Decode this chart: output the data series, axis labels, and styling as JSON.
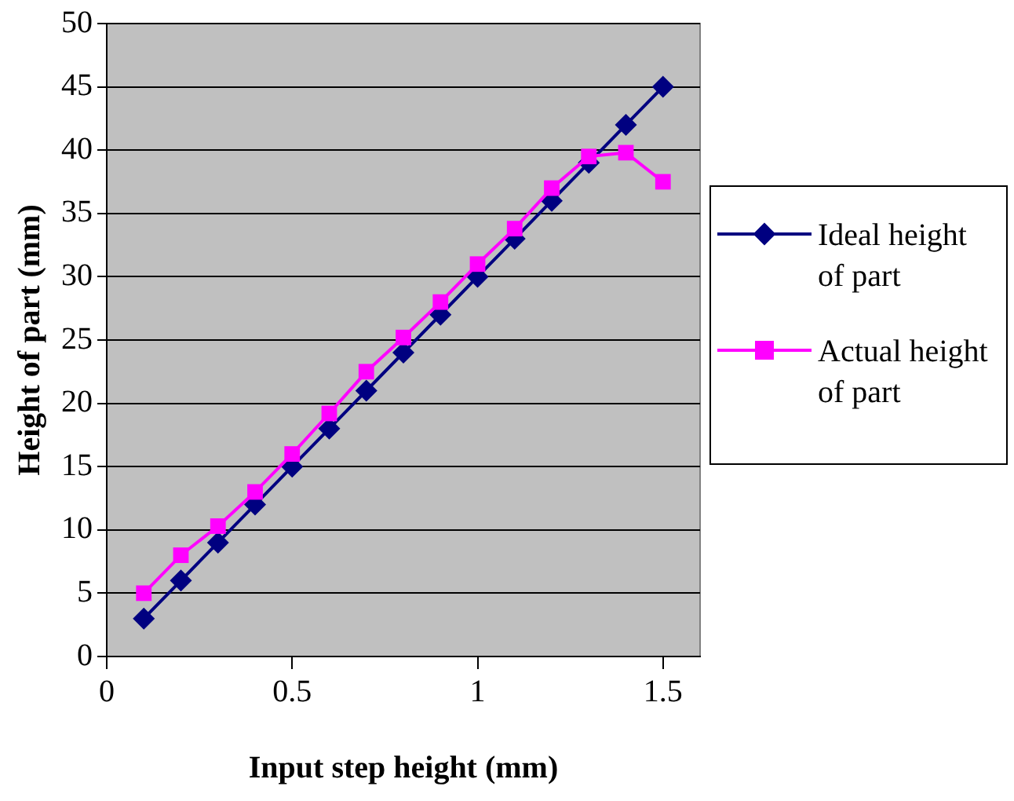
{
  "chart_data": {
    "type": "line",
    "xlabel": "Input step height (mm)",
    "ylabel": "Height of part (mm)",
    "x": [
      0.1,
      0.2,
      0.3,
      0.4,
      0.5,
      0.6,
      0.7,
      0.8,
      0.9,
      1.0,
      1.1,
      1.2,
      1.3,
      1.4,
      1.5
    ],
    "series": [
      {
        "name": "Ideal height of part",
        "color": "#000080",
        "marker": "diamond",
        "values": [
          3,
          6,
          9,
          12,
          15,
          18,
          21,
          24,
          27,
          30,
          33,
          36,
          39,
          42,
          45
        ]
      },
      {
        "name": "Actual height of part",
        "color": "#ff00ff",
        "marker": "square",
        "values": [
          5,
          8,
          10.3,
          13,
          16,
          19.2,
          22.5,
          25.2,
          28,
          31,
          33.8,
          37,
          39.5,
          39.8,
          37.5
        ]
      }
    ],
    "xlim": [
      0,
      1.6
    ],
    "xticks": [
      0,
      0.5,
      1,
      1.5
    ],
    "ylim": [
      0,
      50
    ],
    "yticks": [
      0,
      5,
      10,
      15,
      20,
      25,
      30,
      35,
      40,
      45,
      50
    ],
    "grid": "y",
    "legend": "right",
    "line_style": "solid"
  }
}
